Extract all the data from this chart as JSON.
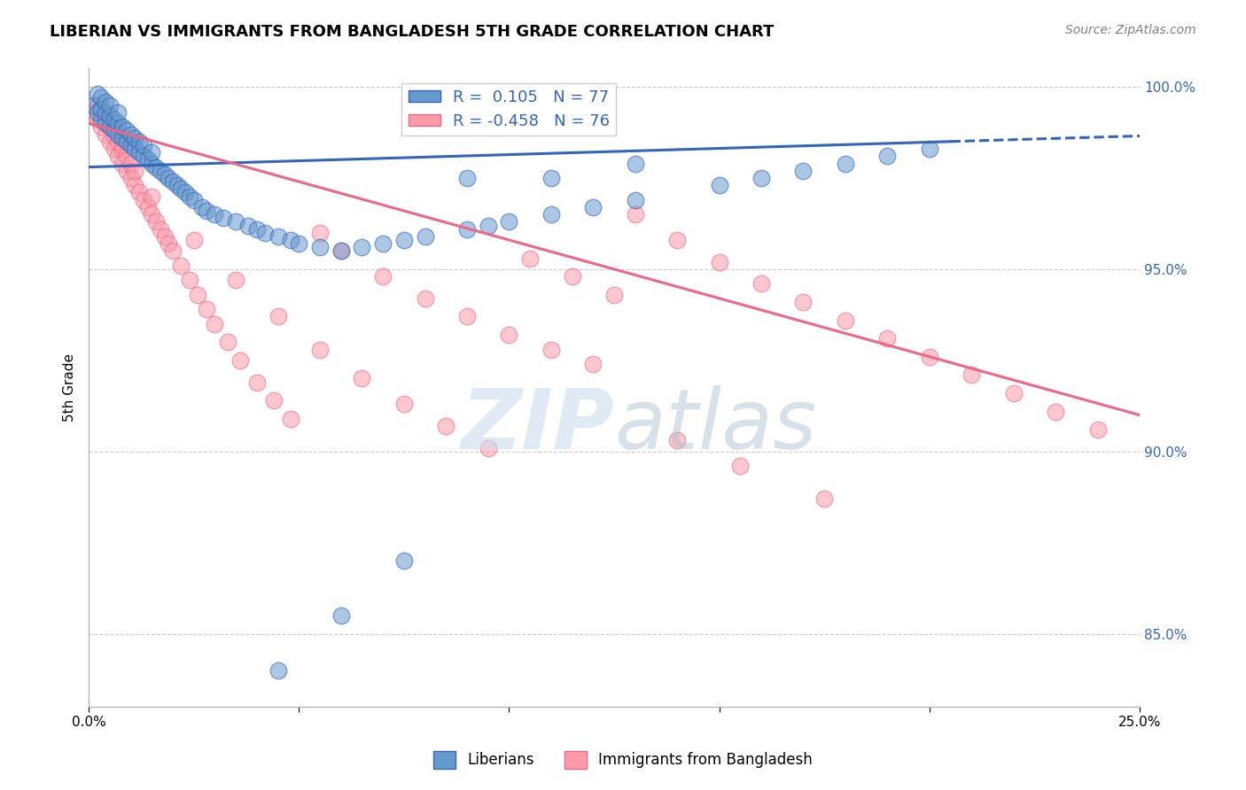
{
  "title": "LIBERIAN VS IMMIGRANTS FROM BANGLADESH 5TH GRADE CORRELATION CHART",
  "source": "Source: ZipAtlas.com",
  "ylabel": "5th Grade",
  "xlim": [
    0.0,
    0.25
  ],
  "ylim": [
    0.83,
    1.005
  ],
  "xticks": [
    0.0,
    0.05,
    0.1,
    0.15,
    0.2,
    0.25
  ],
  "xticklabels": [
    "0.0%",
    "",
    "",
    "",
    "",
    "25.0%"
  ],
  "yticks_right": [
    0.85,
    0.9,
    0.95,
    1.0
  ],
  "yticklabels_right": [
    "85.0%",
    "90.0%",
    "95.0%",
    "100.0%"
  ],
  "blue_R": 0.105,
  "blue_N": 77,
  "pink_R": -0.458,
  "pink_N": 76,
  "legend_label_blue": "Liberians",
  "legend_label_pink": "Immigrants from Bangladesh",
  "blue_color": "#6699CC",
  "pink_color": "#FF99AA",
  "blue_line_color": "#3366BB",
  "pink_line_color": "#EE6688",
  "watermark_zip": "ZIP",
  "watermark_atlas": "atlas",
  "blue_trend_x0": 0.0,
  "blue_trend_y0": 0.978,
  "blue_trend_x1": 0.205,
  "blue_trend_y1": 0.985,
  "blue_trend_xdash0": 0.205,
  "blue_trend_xdash1": 0.25,
  "pink_trend_x0": 0.0,
  "pink_trend_y0": 0.99,
  "pink_trend_x1": 0.25,
  "pink_trend_y1": 0.91,
  "blue_scatter_x": [
    0.001,
    0.002,
    0.002,
    0.003,
    0.003,
    0.003,
    0.004,
    0.004,
    0.004,
    0.005,
    0.005,
    0.005,
    0.006,
    0.006,
    0.007,
    0.007,
    0.007,
    0.008,
    0.008,
    0.009,
    0.009,
    0.01,
    0.01,
    0.011,
    0.011,
    0.012,
    0.012,
    0.013,
    0.013,
    0.014,
    0.015,
    0.015,
    0.016,
    0.017,
    0.018,
    0.019,
    0.02,
    0.021,
    0.022,
    0.023,
    0.024,
    0.025,
    0.027,
    0.028,
    0.03,
    0.032,
    0.035,
    0.038,
    0.04,
    0.042,
    0.045,
    0.048,
    0.05,
    0.055,
    0.06,
    0.065,
    0.07,
    0.075,
    0.08,
    0.09,
    0.095,
    0.1,
    0.11,
    0.12,
    0.13,
    0.15,
    0.16,
    0.17,
    0.18,
    0.19,
    0.2,
    0.045,
    0.06,
    0.075,
    0.09,
    0.11,
    0.13
  ],
  "blue_scatter_y": [
    0.995,
    0.993,
    0.998,
    0.991,
    0.994,
    0.997,
    0.99,
    0.993,
    0.996,
    0.989,
    0.992,
    0.995,
    0.988,
    0.991,
    0.987,
    0.99,
    0.993,
    0.986,
    0.989,
    0.985,
    0.988,
    0.984,
    0.987,
    0.983,
    0.986,
    0.982,
    0.985,
    0.981,
    0.984,
    0.98,
    0.979,
    0.982,
    0.978,
    0.977,
    0.976,
    0.975,
    0.974,
    0.973,
    0.972,
    0.971,
    0.97,
    0.969,
    0.967,
    0.966,
    0.965,
    0.964,
    0.963,
    0.962,
    0.961,
    0.96,
    0.959,
    0.958,
    0.957,
    0.956,
    0.955,
    0.956,
    0.957,
    0.958,
    0.959,
    0.961,
    0.962,
    0.963,
    0.965,
    0.967,
    0.969,
    0.973,
    0.975,
    0.977,
    0.979,
    0.981,
    0.983,
    0.84,
    0.855,
    0.87,
    0.975,
    0.975,
    0.979
  ],
  "pink_scatter_x": [
    0.001,
    0.002,
    0.002,
    0.003,
    0.003,
    0.004,
    0.004,
    0.005,
    0.005,
    0.006,
    0.006,
    0.007,
    0.007,
    0.008,
    0.008,
    0.009,
    0.009,
    0.01,
    0.01,
    0.011,
    0.011,
    0.012,
    0.013,
    0.014,
    0.015,
    0.016,
    0.017,
    0.018,
    0.019,
    0.02,
    0.022,
    0.024,
    0.026,
    0.028,
    0.03,
    0.033,
    0.036,
    0.04,
    0.044,
    0.048,
    0.055,
    0.06,
    0.07,
    0.08,
    0.09,
    0.1,
    0.11,
    0.12,
    0.13,
    0.14,
    0.15,
    0.16,
    0.17,
    0.18,
    0.19,
    0.2,
    0.21,
    0.22,
    0.23,
    0.24,
    0.008,
    0.015,
    0.025,
    0.035,
    0.045,
    0.055,
    0.065,
    0.075,
    0.085,
    0.095,
    0.105,
    0.115,
    0.125,
    0.14,
    0.155,
    0.175
  ],
  "pink_scatter_y": [
    0.993,
    0.991,
    0.995,
    0.989,
    0.993,
    0.987,
    0.991,
    0.985,
    0.989,
    0.983,
    0.987,
    0.981,
    0.985,
    0.979,
    0.983,
    0.977,
    0.981,
    0.975,
    0.979,
    0.973,
    0.977,
    0.971,
    0.969,
    0.967,
    0.965,
    0.963,
    0.961,
    0.959,
    0.957,
    0.955,
    0.951,
    0.947,
    0.943,
    0.939,
    0.935,
    0.93,
    0.925,
    0.919,
    0.914,
    0.909,
    0.96,
    0.955,
    0.948,
    0.942,
    0.937,
    0.932,
    0.928,
    0.924,
    0.965,
    0.958,
    0.952,
    0.946,
    0.941,
    0.936,
    0.931,
    0.926,
    0.921,
    0.916,
    0.911,
    0.906,
    0.984,
    0.97,
    0.958,
    0.947,
    0.937,
    0.928,
    0.92,
    0.913,
    0.907,
    0.901,
    0.953,
    0.948,
    0.943,
    0.903,
    0.896,
    0.887
  ]
}
